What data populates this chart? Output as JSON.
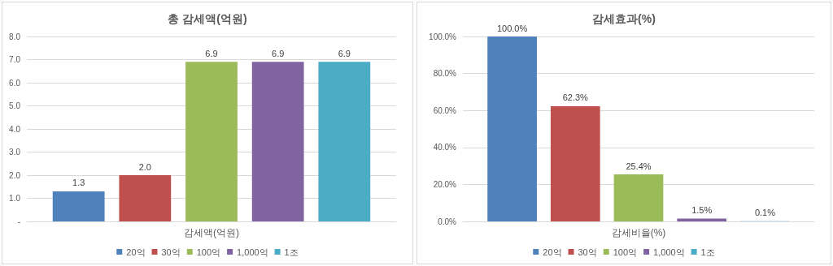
{
  "chart_data": [
    {
      "type": "bar",
      "title": "총 감세액(억원)",
      "categories": [
        "감세액(억원)"
      ],
      "series": [
        {
          "name": "20억",
          "color": "#4f81bd",
          "values": [
            1.3
          ],
          "value_labels": [
            "1.3"
          ]
        },
        {
          "name": "30억",
          "color": "#c0504d",
          "values": [
            2.0
          ],
          "value_labels": [
            "2.0"
          ]
        },
        {
          "name": "100억",
          "color": "#9bbb59",
          "values": [
            6.9
          ],
          "value_labels": [
            "6.9"
          ]
        },
        {
          "name": "1,000억",
          "color": "#8064a2",
          "values": [
            6.9
          ],
          "value_labels": [
            "6.9"
          ]
        },
        {
          "name": "1조",
          "color": "#4bacc6",
          "values": [
            6.9
          ],
          "value_labels": [
            "6.9"
          ]
        }
      ],
      "ylim": [
        0,
        8
      ],
      "yticks": [
        {
          "value": 0,
          "label": "-"
        },
        {
          "value": 1,
          "label": "1.0"
        },
        {
          "value": 2,
          "label": "2.0"
        },
        {
          "value": 3,
          "label": "3.0"
        },
        {
          "value": 4,
          "label": "4.0"
        },
        {
          "value": 5,
          "label": "5.0"
        },
        {
          "value": 6,
          "label": "6.0"
        },
        {
          "value": 7,
          "label": "7.0"
        },
        {
          "value": 8,
          "label": "8.0"
        }
      ],
      "grid": "y",
      "legend": "bottom"
    },
    {
      "type": "bar",
      "title": "감세효과(%)",
      "categories": [
        "감세비율(%)"
      ],
      "series": [
        {
          "name": "20억",
          "color": "#4f81bd",
          "values": [
            100.0
          ],
          "value_labels": [
            "100.0%"
          ]
        },
        {
          "name": "30억",
          "color": "#c0504d",
          "values": [
            62.3
          ],
          "value_labels": [
            "62.3%"
          ]
        },
        {
          "name": "100억",
          "color": "#9bbb59",
          "values": [
            25.4
          ],
          "value_labels": [
            "25.4%"
          ]
        },
        {
          "name": "1,000억",
          "color": "#8064a2",
          "values": [
            1.5
          ],
          "value_labels": [
            "1.5%"
          ]
        },
        {
          "name": "1조",
          "color": "#4bacc6",
          "values": [
            0.1
          ],
          "value_labels": [
            "0.1%"
          ]
        }
      ],
      "ylim": [
        0,
        100
      ],
      "yticks": [
        {
          "value": 0,
          "label": "0.0%"
        },
        {
          "value": 20,
          "label": "20.0%"
        },
        {
          "value": 40,
          "label": "40.0%"
        },
        {
          "value": 60,
          "label": "60.0%"
        },
        {
          "value": 80,
          "label": "80.0%"
        },
        {
          "value": 100,
          "label": "100.0%"
        }
      ],
      "grid": "y",
      "legend": "bottom"
    }
  ]
}
